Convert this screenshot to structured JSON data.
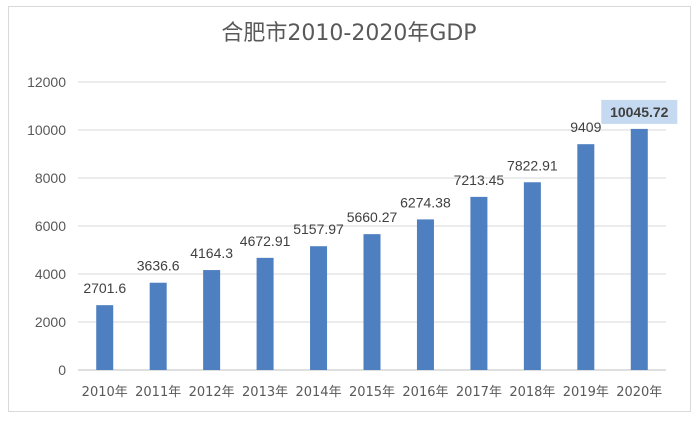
{
  "chart_data": {
    "type": "bar",
    "title": "合肥市2010-2020年GDP",
    "categories": [
      "2010年",
      "2011年",
      "2012年",
      "2013年",
      "2014年",
      "2015年",
      "2016年",
      "2017年",
      "2018年",
      "2019年",
      "2020年"
    ],
    "values": [
      2701.6,
      3636.6,
      4164.3,
      4672.91,
      5157.97,
      5660.27,
      6274.38,
      7213.45,
      7822.91,
      9409,
      10045.72
    ],
    "data_labels": [
      "2701.6",
      "3636.6",
      "4164.3",
      "4672.91",
      "5157.97",
      "5660.27",
      "6274.38",
      "7213.45",
      "7822.91",
      "9409",
      "10045.72"
    ],
    "highlighted_index": 10,
    "y_ticks": [
      "0",
      "2000",
      "4000",
      "6000",
      "8000",
      "10000",
      "12000"
    ],
    "ylim": [
      0,
      12000
    ],
    "grid": true,
    "legend": "none",
    "bar_color": "#4e7fc0",
    "highlight_color": "#c5d9f1",
    "xlabel": "",
    "ylabel": ""
  }
}
